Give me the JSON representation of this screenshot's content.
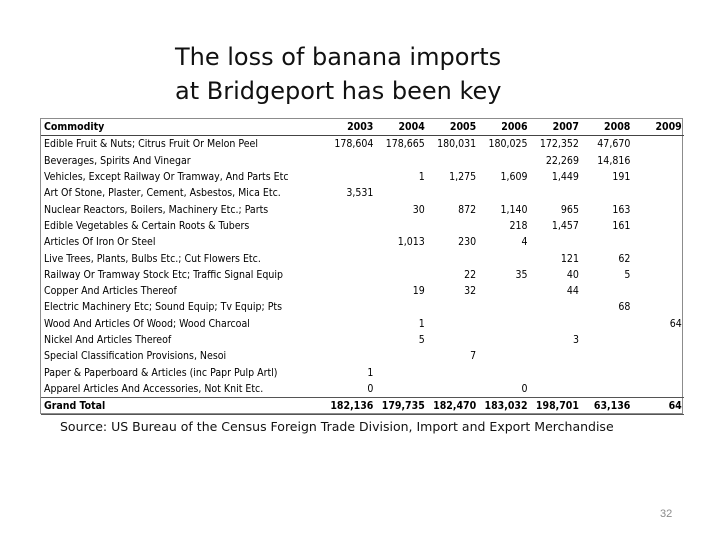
{
  "slide": {
    "title_line1": "The loss of banana imports",
    "title_line2": "at Bridgeport has been key",
    "source": "Source: US Bureau of the Census Foreign Trade Division, Import and Export Merchandise",
    "page_number": "32"
  },
  "table": {
    "headers": [
      "Commodity",
      "2003",
      "2004",
      "2005",
      "2006",
      "2007",
      "2008",
      "2009"
    ],
    "rows": [
      [
        "Edible Fruit & Nuts; Citrus Fruit Or Melon Peel",
        "178,604",
        "178,665",
        "180,031",
        "180,025",
        "172,352",
        "47,670",
        ""
      ],
      [
        "Beverages, Spirits And Vinegar",
        "",
        "",
        "",
        "",
        "22,269",
        "14,816",
        ""
      ],
      [
        "Vehicles, Except Railway Or Tramway, And Parts Etc",
        "",
        "1",
        "1,275",
        "1,609",
        "1,449",
        "191",
        ""
      ],
      [
        "Art Of Stone, Plaster, Cement, Asbestos, Mica Etc.",
        "3,531",
        "",
        "",
        "",
        "",
        "",
        ""
      ],
      [
        "Nuclear Reactors, Boilers, Machinery Etc.; Parts",
        "",
        "30",
        "872",
        "1,140",
        "965",
        "163",
        ""
      ],
      [
        "Edible Vegetables & Certain Roots & Tubers",
        "",
        "",
        "",
        "218",
        "1,457",
        "161",
        ""
      ],
      [
        "Articles Of Iron Or Steel",
        "",
        "1,013",
        "230",
        "4",
        "",
        "",
        ""
      ],
      [
        "Live Trees, Plants, Bulbs Etc.; Cut Flowers Etc.",
        "",
        "",
        "",
        "",
        "121",
        "62",
        ""
      ],
      [
        "Railway Or Tramway Stock Etc; Traffic Signal Equip",
        "",
        "",
        "22",
        "35",
        "40",
        "5",
        ""
      ],
      [
        "Copper And Articles Thereof",
        "",
        "19",
        "32",
        "",
        "44",
        "",
        ""
      ],
      [
        "Electric Machinery Etc; Sound Equip; Tv Equip; Pts",
        "",
        "",
        "",
        "",
        "",
        "68",
        ""
      ],
      [
        "Wood And Articles Of Wood; Wood Charcoal",
        "",
        "1",
        "",
        "",
        "",
        "",
        "64"
      ],
      [
        "Nickel And Articles Thereof",
        "",
        "5",
        "",
        "",
        "3",
        "",
        ""
      ],
      [
        "Special Classification Provisions, Nesoi",
        "",
        "",
        "7",
        "",
        "",
        "",
        ""
      ],
      [
        "Paper & Paperboard & Articles (inc Papr Pulp Artl)",
        "1",
        "",
        "",
        "",
        "",
        "",
        ""
      ],
      [
        "Apparel Articles And Accessories, Not Knit Etc.",
        "0",
        "",
        "",
        "0",
        "",
        "",
        ""
      ]
    ],
    "total": [
      "Grand Total",
      "182,136",
      "179,735",
      "182,470",
      "183,032",
      "198,701",
      "63,136",
      "64"
    ]
  }
}
